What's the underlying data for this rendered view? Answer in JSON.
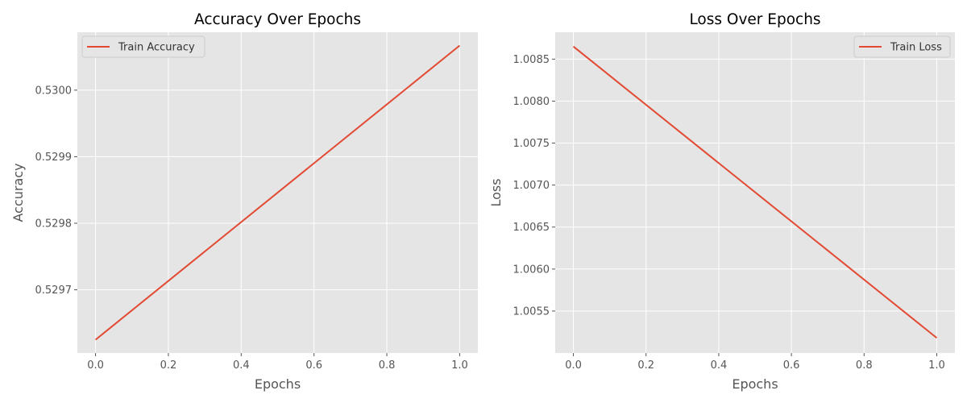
{
  "chart_data": [
    {
      "type": "line",
      "title": "Accuracy Over Epochs",
      "xlabel": "Epochs",
      "ylabel": "Accuracy",
      "xlim": [
        -0.05,
        1.05
      ],
      "ylim": [
        0.529605,
        0.530087
      ],
      "xticks": [
        0.0,
        0.2,
        0.4,
        0.6,
        0.8,
        1.0
      ],
      "xtick_labels": [
        "0.0",
        "0.2",
        "0.4",
        "0.6",
        "0.8",
        "1.0"
      ],
      "yticks": [
        0.5297,
        0.5298,
        0.5299,
        0.53
      ],
      "ytick_labels": [
        "0.5297",
        "0.5298",
        "0.5299",
        "0.5300"
      ],
      "grid": true,
      "legend": "upper-left",
      "series": [
        {
          "name": "Train Accuracy",
          "color": "#e24a33",
          "x": [
            0,
            1
          ],
          "y": [
            0.529625,
            0.530067
          ]
        }
      ]
    },
    {
      "type": "line",
      "title": "Loss Over Epochs",
      "xlabel": "Epochs",
      "ylabel": "Loss",
      "xlim": [
        -0.05,
        1.05
      ],
      "ylim": [
        1.005,
        1.00882
      ],
      "xticks": [
        0.0,
        0.2,
        0.4,
        0.6,
        0.8,
        1.0
      ],
      "xtick_labels": [
        "0.0",
        "0.2",
        "0.4",
        "0.6",
        "0.8",
        "1.0"
      ],
      "yticks": [
        1.0055,
        1.006,
        1.0065,
        1.007,
        1.0075,
        1.008,
        1.0085
      ],
      "ytick_labels": [
        "1.0055",
        "1.0060",
        "1.0065",
        "1.0070",
        "1.0075",
        "1.0080",
        "1.0085"
      ],
      "grid": true,
      "legend": "upper-right",
      "series": [
        {
          "name": "Train Loss",
          "color": "#e24a33",
          "x": [
            0,
            1
          ],
          "y": [
            1.00865,
            1.00518
          ]
        }
      ]
    }
  ]
}
